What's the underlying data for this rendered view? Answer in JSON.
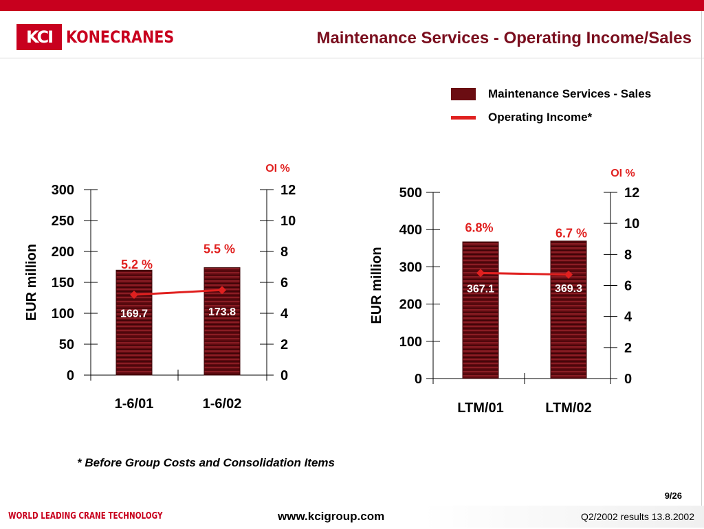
{
  "header": {
    "logo_mark": "KCI",
    "logo_text": "KONECRANES",
    "title": "Maintenance Services - Operating Income/Sales"
  },
  "legend": {
    "bar_label": "Maintenance Services - Sales",
    "line_label": "Operating Income*"
  },
  "footnote": "* Before Group Costs and Consolidation Items",
  "page_number": "9/26",
  "footer": {
    "slogan": "WORLD LEADING CRANE TECHNOLOGY",
    "website": "www.kcigroup.com",
    "report": "Q2/2002 results 13.8.2002"
  },
  "colors": {
    "brand_red": "#c8001e",
    "bar_dark": "#6b0d12",
    "line_red": "#e0201f",
    "title_maroon": "#7a0e1e"
  },
  "chart_data": [
    {
      "type": "bar",
      "categories": [
        "1-6/01",
        "1-6/02"
      ],
      "values": [
        169.7,
        173.8
      ],
      "value_labels": [
        "169.7",
        "173.8"
      ],
      "ylabel": "EUR million",
      "ylim": [
        0,
        300
      ],
      "yticks": [
        0,
        50,
        100,
        150,
        200,
        250,
        300
      ],
      "y2label": "OI %",
      "y2lim": [
        0,
        12
      ],
      "y2ticks": [
        0,
        2,
        4,
        6,
        8,
        10,
        12
      ],
      "series": [
        {
          "name": "Maintenance Services - Sales",
          "type": "bar",
          "values": [
            169.7,
            173.8
          ]
        },
        {
          "name": "Operating Income*",
          "type": "line",
          "axis": "y2",
          "values": [
            5.2,
            5.5
          ],
          "labels": [
            "5.2 %",
            "5.5 %"
          ]
        }
      ]
    },
    {
      "type": "bar",
      "categories": [
        "LTM/01",
        "LTM/02"
      ],
      "values": [
        367.1,
        369.3
      ],
      "value_labels": [
        "367.1",
        "369.3"
      ],
      "ylabel": "EUR million",
      "ylim": [
        0,
        500
      ],
      "yticks": [
        0,
        100,
        200,
        300,
        400,
        500
      ],
      "y2label": "OI %",
      "y2lim": [
        0,
        12
      ],
      "y2ticks": [
        0,
        2,
        4,
        6,
        8,
        10,
        12
      ],
      "series": [
        {
          "name": "Maintenance Services - Sales",
          "type": "bar",
          "values": [
            367.1,
            369.3
          ]
        },
        {
          "name": "Operating Income*",
          "type": "line",
          "axis": "y2",
          "values": [
            6.8,
            6.7
          ],
          "labels": [
            "6.8%",
            "6.7 %"
          ]
        }
      ]
    }
  ]
}
